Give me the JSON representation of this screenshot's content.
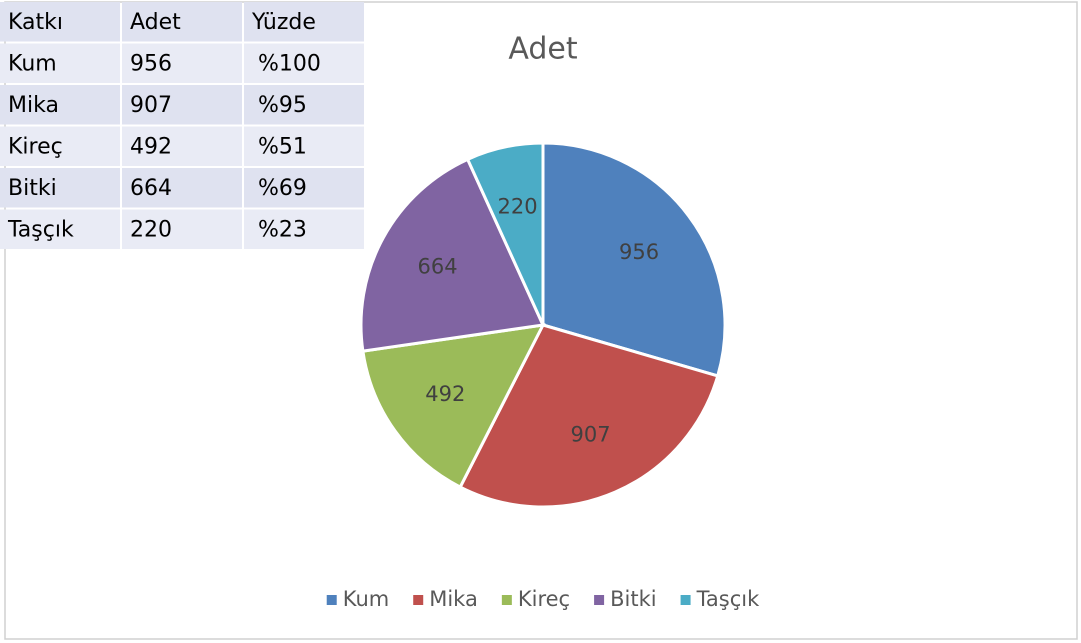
{
  "table": {
    "header": [
      "Katkı",
      "Adet",
      "Yüzde"
    ],
    "rows": [
      [
        "Kum",
        "956",
        "%100"
      ],
      [
        "Mika",
        "907",
        "%95"
      ],
      [
        "Kireç",
        "492",
        "%51"
      ],
      [
        "Bitki",
        "664",
        "%69"
      ],
      [
        "Taşçık",
        "220",
        "%23"
      ]
    ]
  },
  "chart_data": {
    "type": "pie",
    "title": "Adet",
    "categories": [
      "Kum",
      "Mika",
      "Kireç",
      "Bitki",
      "Taşçık"
    ],
    "values": [
      956,
      907,
      492,
      664,
      220
    ],
    "colors": [
      "#4f81bd",
      "#c0504d",
      "#9bbb59",
      "#8064a2",
      "#4bacc6"
    ],
    "legend": "bottom"
  }
}
